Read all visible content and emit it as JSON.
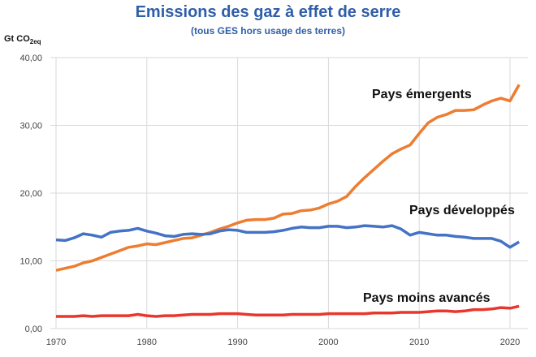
{
  "chart_data": {
    "type": "line",
    "title": "Emissions des gaz à effet de serre",
    "subtitle": "(tous GES hors usage des terres)",
    "ylabel": "Gt CO",
    "ylabel_sub": "2eq",
    "xlabel": "",
    "xlim": [
      1970,
      2021
    ],
    "ylim": [
      0,
      40
    ],
    "xticks": [
      1970,
      1980,
      1990,
      2000,
      2010,
      2020
    ],
    "yticks": [
      "0,00",
      "10,00",
      "20,00",
      "30,00",
      "40,00"
    ],
    "grid": true,
    "x_start": 1970,
    "series": [
      {
        "name": "Pays émergents",
        "color": "#ed7d31",
        "values": [
          8.6,
          8.9,
          9.2,
          9.7,
          10.0,
          10.5,
          11.0,
          11.5,
          12.0,
          12.2,
          12.5,
          12.4,
          12.7,
          13.0,
          13.3,
          13.4,
          13.8,
          14.2,
          14.7,
          15.1,
          15.6,
          16.0,
          16.1,
          16.1,
          16.3,
          16.9,
          17.0,
          17.4,
          17.5,
          17.8,
          18.4,
          18.8,
          19.5,
          21.0,
          22.3,
          23.5,
          24.7,
          25.8,
          26.5,
          27.1,
          28.8,
          30.4,
          31.2,
          31.6,
          32.2,
          32.2,
          32.3,
          33.0,
          33.6,
          34.0,
          33.6,
          36.0
        ]
      },
      {
        "name": "Pays développés",
        "color": "#4472c4",
        "values": [
          13.1,
          13.0,
          13.4,
          14.0,
          13.8,
          13.5,
          14.2,
          14.4,
          14.5,
          14.8,
          14.4,
          14.1,
          13.7,
          13.6,
          13.9,
          14.0,
          13.9,
          14.0,
          14.4,
          14.6,
          14.5,
          14.2,
          14.2,
          14.2,
          14.3,
          14.5,
          14.8,
          15.0,
          14.9,
          14.9,
          15.1,
          15.1,
          14.9,
          15.0,
          15.2,
          15.1,
          15.0,
          15.2,
          14.7,
          13.8,
          14.2,
          14.0,
          13.8,
          13.8,
          13.6,
          13.5,
          13.3,
          13.3,
          13.3,
          12.9,
          12.0,
          12.8
        ]
      },
      {
        "name": "Pays moins avancés",
        "color": "#e8372c",
        "values": [
          1.8,
          1.8,
          1.8,
          1.9,
          1.8,
          1.9,
          1.9,
          1.9,
          1.9,
          2.1,
          1.9,
          1.8,
          1.9,
          1.9,
          2.0,
          2.1,
          2.1,
          2.1,
          2.2,
          2.2,
          2.2,
          2.1,
          2.0,
          2.0,
          2.0,
          2.0,
          2.1,
          2.1,
          2.1,
          2.1,
          2.2,
          2.2,
          2.2,
          2.2,
          2.2,
          2.3,
          2.3,
          2.3,
          2.4,
          2.4,
          2.4,
          2.5,
          2.6,
          2.6,
          2.5,
          2.6,
          2.8,
          2.8,
          2.9,
          3.1,
          3.0,
          3.3
        ]
      }
    ]
  }
}
